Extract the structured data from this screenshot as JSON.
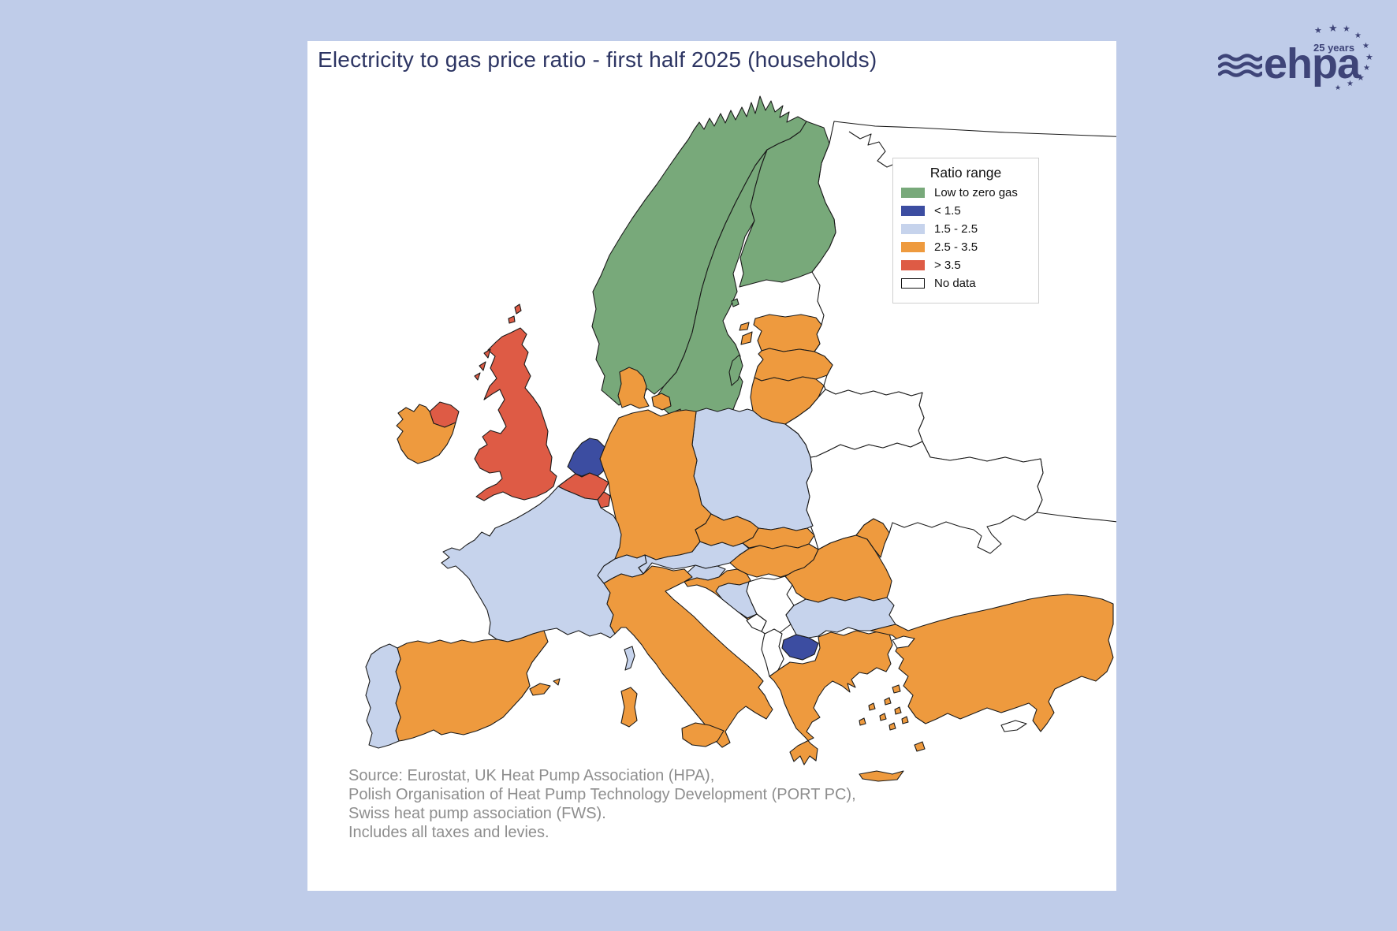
{
  "title": "Electricity to gas price ratio - first half 2025 (households)",
  "colors": {
    "page_background": "#bfcce9",
    "panel_background": "#ffffff",
    "title_text": "#2d3563",
    "source_text": "#8e8e8e",
    "map_border": "#1a1a1a",
    "logo": "#3e4478"
  },
  "legend": {
    "title": "Ratio range",
    "items": [
      {
        "key": "low-zero-gas",
        "label": "Low to zero gas",
        "color": "#78a97a"
      },
      {
        "key": "lt-1.5",
        "label": "< 1.5",
        "color": "#3c4da1"
      },
      {
        "key": "1.5-2.5",
        "label": "1.5 - 2.5",
        "color": "#c6d3ec"
      },
      {
        "key": "2.5-3.5",
        "label": "2.5 - 3.5",
        "color": "#ee9a3e"
      },
      {
        "key": "gt-3.5",
        "label": "> 3.5",
        "color": "#de5b45"
      },
      {
        "key": "no-data",
        "label": "No data",
        "color": "#ffffff"
      }
    ]
  },
  "source_lines": [
    "Source: Eurostat, UK Heat Pump Association (HPA),",
    "Polish Organisation of Heat Pump Technology Development (PORT PC),",
    "Swiss heat pump association (FWS).",
    "Includes all taxes and levies."
  ],
  "logo": {
    "brand": "ehpa",
    "anniversary": "25 years"
  },
  "chart_data": {
    "type": "choropleth-map",
    "region": "Europe",
    "title": "Electricity to gas price ratio - first half 2025 (households)",
    "legend_title": "Ratio range",
    "categories": [
      {
        "key": "low-zero-gas",
        "label": "Low to zero gas",
        "color": "#78a97a"
      },
      {
        "key": "lt-1.5",
        "label": "< 1.5",
        "color": "#3c4da1"
      },
      {
        "key": "1.5-2.5",
        "label": "1.5 - 2.5",
        "color": "#c6d3ec"
      },
      {
        "key": "2.5-3.5",
        "label": "2.5 - 3.5",
        "color": "#ee9a3e"
      },
      {
        "key": "gt-3.5",
        "label": "> 3.5",
        "color": "#de5b45"
      },
      {
        "key": "no-data",
        "label": "No data",
        "color": "#ffffff"
      }
    ],
    "countries": [
      {
        "name": "Norway",
        "category": "low-zero-gas"
      },
      {
        "name": "Sweden",
        "category": "low-zero-gas"
      },
      {
        "name": "Finland",
        "category": "low-zero-gas"
      },
      {
        "name": "United Kingdom",
        "category": "gt-3.5"
      },
      {
        "name": "Belgium",
        "category": "gt-3.5"
      },
      {
        "name": "Luxembourg",
        "category": "gt-3.5"
      },
      {
        "name": "Netherlands",
        "category": "lt-1.5"
      },
      {
        "name": "North Macedonia",
        "category": "lt-1.5"
      },
      {
        "name": "France",
        "category": "1.5-2.5"
      },
      {
        "name": "Portugal",
        "category": "1.5-2.5"
      },
      {
        "name": "Poland",
        "category": "1.5-2.5"
      },
      {
        "name": "Austria",
        "category": "1.5-2.5"
      },
      {
        "name": "Switzerland",
        "category": "1.5-2.5"
      },
      {
        "name": "Slovenia",
        "category": "1.5-2.5"
      },
      {
        "name": "Bosnia and Herzegovina",
        "category": "1.5-2.5"
      },
      {
        "name": "Bulgaria",
        "category": "1.5-2.5"
      },
      {
        "name": "Ireland",
        "category": "2.5-3.5"
      },
      {
        "name": "Denmark",
        "category": "2.5-3.5"
      },
      {
        "name": "Germany",
        "category": "2.5-3.5"
      },
      {
        "name": "Czechia",
        "category": "2.5-3.5"
      },
      {
        "name": "Slovakia",
        "category": "2.5-3.5"
      },
      {
        "name": "Hungary",
        "category": "2.5-3.5"
      },
      {
        "name": "Croatia",
        "category": "2.5-3.5"
      },
      {
        "name": "Romania",
        "category": "2.5-3.5"
      },
      {
        "name": "Moldova",
        "category": "2.5-3.5"
      },
      {
        "name": "Italy",
        "category": "2.5-3.5"
      },
      {
        "name": "Spain",
        "category": "2.5-3.5"
      },
      {
        "name": "Greece",
        "category": "2.5-3.5"
      },
      {
        "name": "Turkey",
        "category": "2.5-3.5"
      },
      {
        "name": "Estonia",
        "category": "2.5-3.5"
      },
      {
        "name": "Latvia",
        "category": "2.5-3.5"
      },
      {
        "name": "Lithuania",
        "category": "2.5-3.5"
      },
      {
        "name": "Serbia",
        "category": "no-data"
      },
      {
        "name": "Montenegro",
        "category": "no-data"
      },
      {
        "name": "Albania",
        "category": "no-data"
      },
      {
        "name": "Ukraine",
        "category": "no-data"
      },
      {
        "name": "Belarus",
        "category": "no-data"
      },
      {
        "name": "Russia",
        "category": "no-data"
      },
      {
        "name": "Cyprus",
        "category": "no-data"
      }
    ]
  }
}
